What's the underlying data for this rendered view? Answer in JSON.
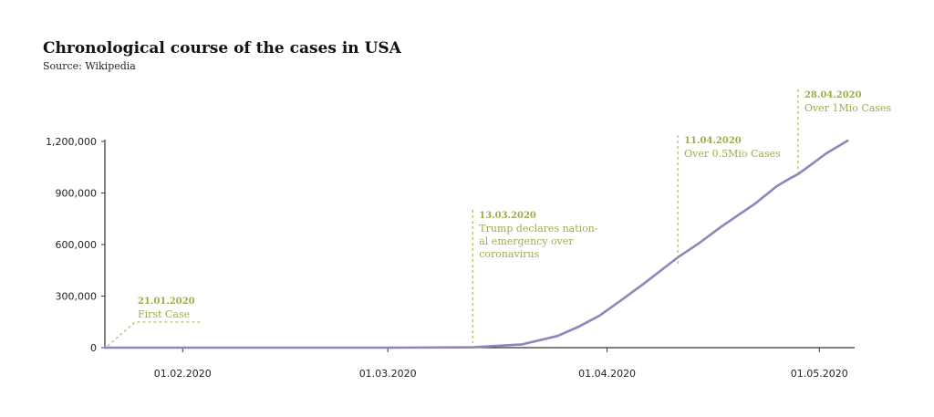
{
  "colors": {
    "line": "#8a87be",
    "annotation": "#9bae4f",
    "axis": "#333333",
    "text": "#222222"
  },
  "chart_data": {
    "type": "line",
    "title": "Chronological course of the cases in USA",
    "subtitle": "Source: Wikipedia",
    "xlabel": "",
    "ylabel": "",
    "grid": false,
    "legend": "none",
    "xlim": [
      "2020-01-21",
      "2020-05-06"
    ],
    "ylim": [
      0,
      1200000
    ],
    "yticks": [
      {
        "value": 0,
        "label": "0"
      },
      {
        "value": 300000,
        "label": "300,000"
      },
      {
        "value": 600000,
        "label": "600,000"
      },
      {
        "value": 900000,
        "label": "900,000"
      },
      {
        "value": 1200000,
        "label": "1,200,000"
      }
    ],
    "xticks": [
      {
        "date": "2020-02-01",
        "label": "01.02.2020"
      },
      {
        "date": "2020-03-01",
        "label": "01.03.2020"
      },
      {
        "date": "2020-04-01",
        "label": "01.04.2020"
      },
      {
        "date": "2020-05-01",
        "label": "01.05.2020"
      }
    ],
    "series": [
      {
        "points": [
          [
            "2020-01-21",
            1
          ],
          [
            "2020-02-01",
            8
          ],
          [
            "2020-02-15",
            15
          ],
          [
            "2020-03-01",
            75
          ],
          [
            "2020-03-13",
            2200
          ],
          [
            "2020-03-20",
            19000
          ],
          [
            "2020-03-25",
            68000
          ],
          [
            "2020-03-28",
            122000
          ],
          [
            "2020-03-31",
            188000
          ],
          [
            "2020-04-03",
            276000
          ],
          [
            "2020-04-06",
            367000
          ],
          [
            "2020-04-08",
            430000
          ],
          [
            "2020-04-11",
            525000
          ],
          [
            "2020-04-14",
            608000
          ],
          [
            "2020-04-17",
            700000
          ],
          [
            "2020-04-20",
            784000
          ],
          [
            "2020-04-22",
            840000
          ],
          [
            "2020-04-25",
            940000
          ],
          [
            "2020-04-27",
            988000
          ],
          [
            "2020-04-28",
            1010000
          ],
          [
            "2020-04-30",
            1070000
          ],
          [
            "2020-05-02",
            1131000
          ],
          [
            "2020-05-05",
            1204000
          ]
        ]
      }
    ],
    "annotations": [
      {
        "date_label": "21.01.2020",
        "text": [
          "First Case"
        ]
      },
      {
        "date_label": "13.03.2020",
        "text": [
          "Trump declares nation-",
          "al emergency over",
          "coronavirus"
        ]
      },
      {
        "date_label": "11.04.2020",
        "text": [
          "Over 0.5Mio Cases"
        ]
      },
      {
        "date_label": "28.04.2020",
        "text": [
          "Over 1Mio Cases"
        ]
      }
    ]
  }
}
